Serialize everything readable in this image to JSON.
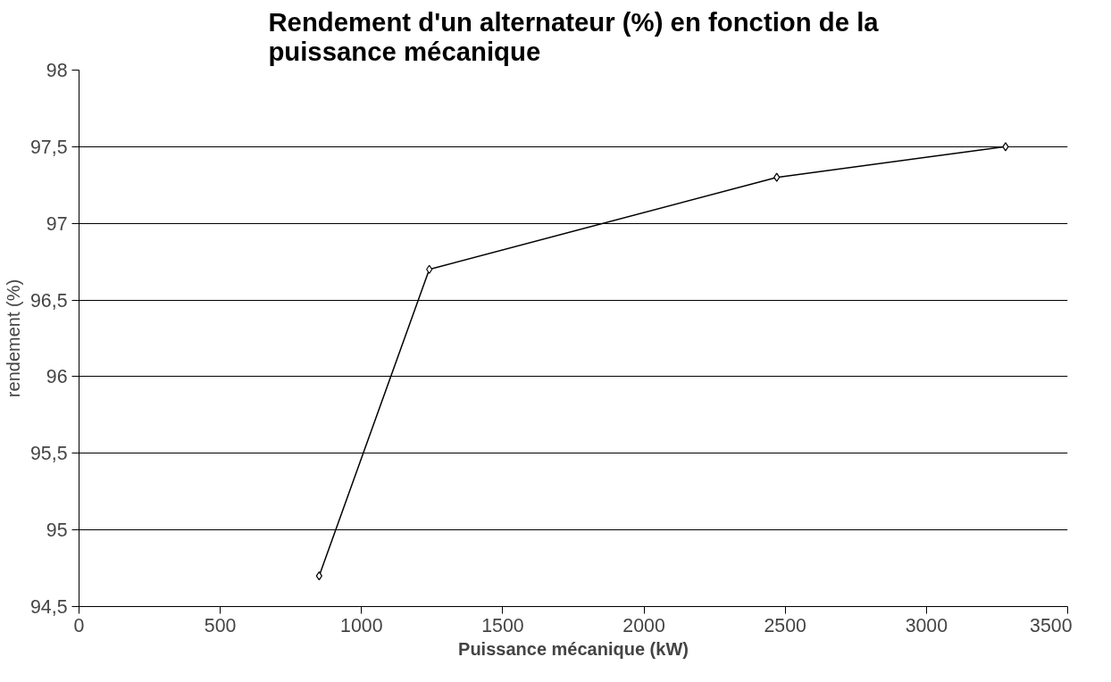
{
  "chart_data": {
    "type": "line",
    "title": "Rendement d'un alternateur (%) en fonction de la puissance mécanique",
    "xlabel": "Puissance mécanique (kW)",
    "ylabel": "rendement (%)",
    "x": [
      850,
      1240,
      2470,
      3280
    ],
    "series": [
      {
        "color": "#000000",
        "values": [
          94.7,
          96.7,
          97.3,
          97.5
        ]
      }
    ],
    "xlim": [
      0,
      3500
    ],
    "xticks": [
      0,
      500,
      1000,
      1500,
      2000,
      2500,
      3000,
      3500
    ],
    "ylim": [
      94.5,
      98
    ],
    "yticks": [
      {
        "value": 94.5,
        "label": "94,5"
      },
      95,
      {
        "value": 95.5,
        "label": "95,5"
      },
      96,
      {
        "value": 96.5,
        "label": "96,5"
      },
      97,
      {
        "value": 97.5,
        "label": "97,5"
      },
      98
    ],
    "grid": "y",
    "marker": "diamond",
    "line_style": "solid"
  }
}
